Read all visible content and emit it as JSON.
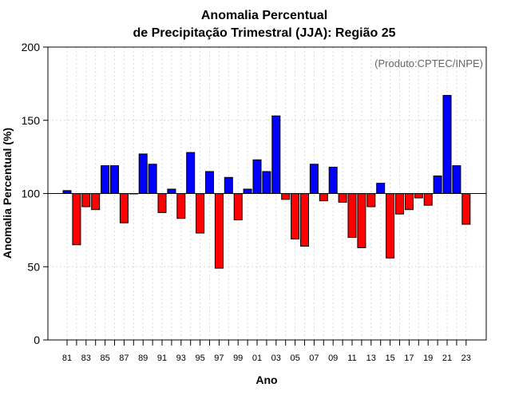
{
  "chart_data": {
    "type": "bar",
    "title_line1": "Anomalia Percentual",
    "title_line2": "de Precipitação Trimestral (JJA): Região 25",
    "xlabel": "Ano",
    "ylabel": "Anomalia Percentual (%)",
    "credit": "(Produto:CPTEC/INPE)",
    "ylim": [
      0,
      200
    ],
    "yticks": [
      0,
      50,
      100,
      150,
      200
    ],
    "baseline": 100,
    "above_color": "#0000ff",
    "below_color": "#ff0000",
    "grid": true,
    "categories": [
      "81",
      "82",
      "83",
      "84",
      "85",
      "86",
      "87",
      "88",
      "89",
      "90",
      "91",
      "92",
      "93",
      "94",
      "95",
      "96",
      "97",
      "98",
      "99",
      "00",
      "01",
      "02",
      "03",
      "04",
      "05",
      "06",
      "07",
      "08",
      "09",
      "10",
      "11",
      "12",
      "13",
      "14",
      "15",
      "16",
      "17",
      "18",
      "19",
      "20",
      "21",
      "22",
      "23"
    ],
    "values": [
      102,
      65,
      91,
      89,
      119,
      119,
      80,
      100,
      127,
      120,
      87,
      103,
      83,
      128,
      73,
      115,
      49,
      111,
      82,
      103,
      123,
      115,
      153,
      96,
      69,
      64,
      120,
      95,
      118,
      94,
      70,
      63,
      91,
      107,
      56,
      86,
      89,
      97,
      92,
      112,
      167,
      119,
      79
    ],
    "xtick_labels": [
      "81",
      "83",
      "85",
      "87",
      "89",
      "91",
      "93",
      "95",
      "97",
      "99",
      "01",
      "03",
      "05",
      "07",
      "09",
      "11",
      "13",
      "15",
      "17",
      "19",
      "21",
      "23"
    ]
  }
}
